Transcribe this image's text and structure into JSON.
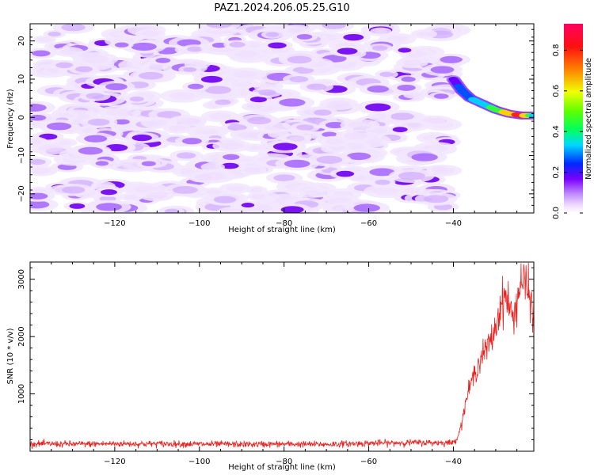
{
  "title": "PAZ1.2024.206.05.25.G10",
  "chart_data": [
    {
      "type": "heatmap",
      "xlabel": "Height of straight line (km)",
      "ylabel": "Frequency (Hz)",
      "xlim": [
        -140,
        -21
      ],
      "ylim": [
        -25,
        24.5
      ],
      "xticks": [
        -120,
        -100,
        -80,
        -60,
        -40
      ],
      "yticks": [
        -20,
        -10,
        0,
        10,
        20
      ],
      "colorbar": {
        "label": "Normalized spectral amplitude",
        "range": [
          0,
          0.93
        ],
        "ticks": [
          0.0,
          0.2,
          0.4,
          0.6,
          0.8
        ],
        "colormap": "gist_rainbow_r"
      },
      "data_x_range": [
        -140,
        -40
      ],
      "signal_ridge": [
        {
          "x": -40,
          "y": 10,
          "v": 0.22
        },
        {
          "x": -38,
          "y": 7,
          "v": 0.28
        },
        {
          "x": -36,
          "y": 5,
          "v": 0.32
        },
        {
          "x": -33,
          "y": 3.5,
          "v": 0.38
        },
        {
          "x": -30,
          "y": 2,
          "v": 0.5
        },
        {
          "x": -27,
          "y": 1,
          "v": 0.7
        },
        {
          "x": -24,
          "y": 0.5,
          "v": 0.9
        },
        {
          "x": -21,
          "y": 0.5,
          "v": 0.4
        }
      ]
    },
    {
      "type": "line",
      "xlabel": "Height of straight line (km)",
      "ylabel": "SNR (10 * v/v)",
      "xlim": [
        -140,
        -21
      ],
      "ylim": [
        0,
        3300
      ],
      "xticks": [
        -120,
        -100,
        -80,
        -60,
        -40
      ],
      "yticks": [
        1000,
        2000,
        3000
      ],
      "series": [
        {
          "color": "#e8221f",
          "x": [
            -140,
            -130,
            -120,
            -110,
            -100,
            -90,
            -80,
            -70,
            -60,
            -50,
            -40,
            -39,
            -38,
            -37,
            -36,
            -35,
            -34,
            -33,
            -32,
            -31,
            -30,
            -29,
            -28,
            -27,
            -26,
            -25,
            -24,
            -23,
            -22,
            -21
          ],
          "values": [
            130,
            125,
            130,
            130,
            125,
            120,
            125,
            120,
            140,
            150,
            150,
            250,
            500,
            900,
            1150,
            1350,
            1550,
            1700,
            1800,
            1950,
            2150,
            2500,
            2700,
            2600,
            2300,
            2600,
            3000,
            2900,
            2700,
            2400
          ]
        }
      ]
    }
  ]
}
